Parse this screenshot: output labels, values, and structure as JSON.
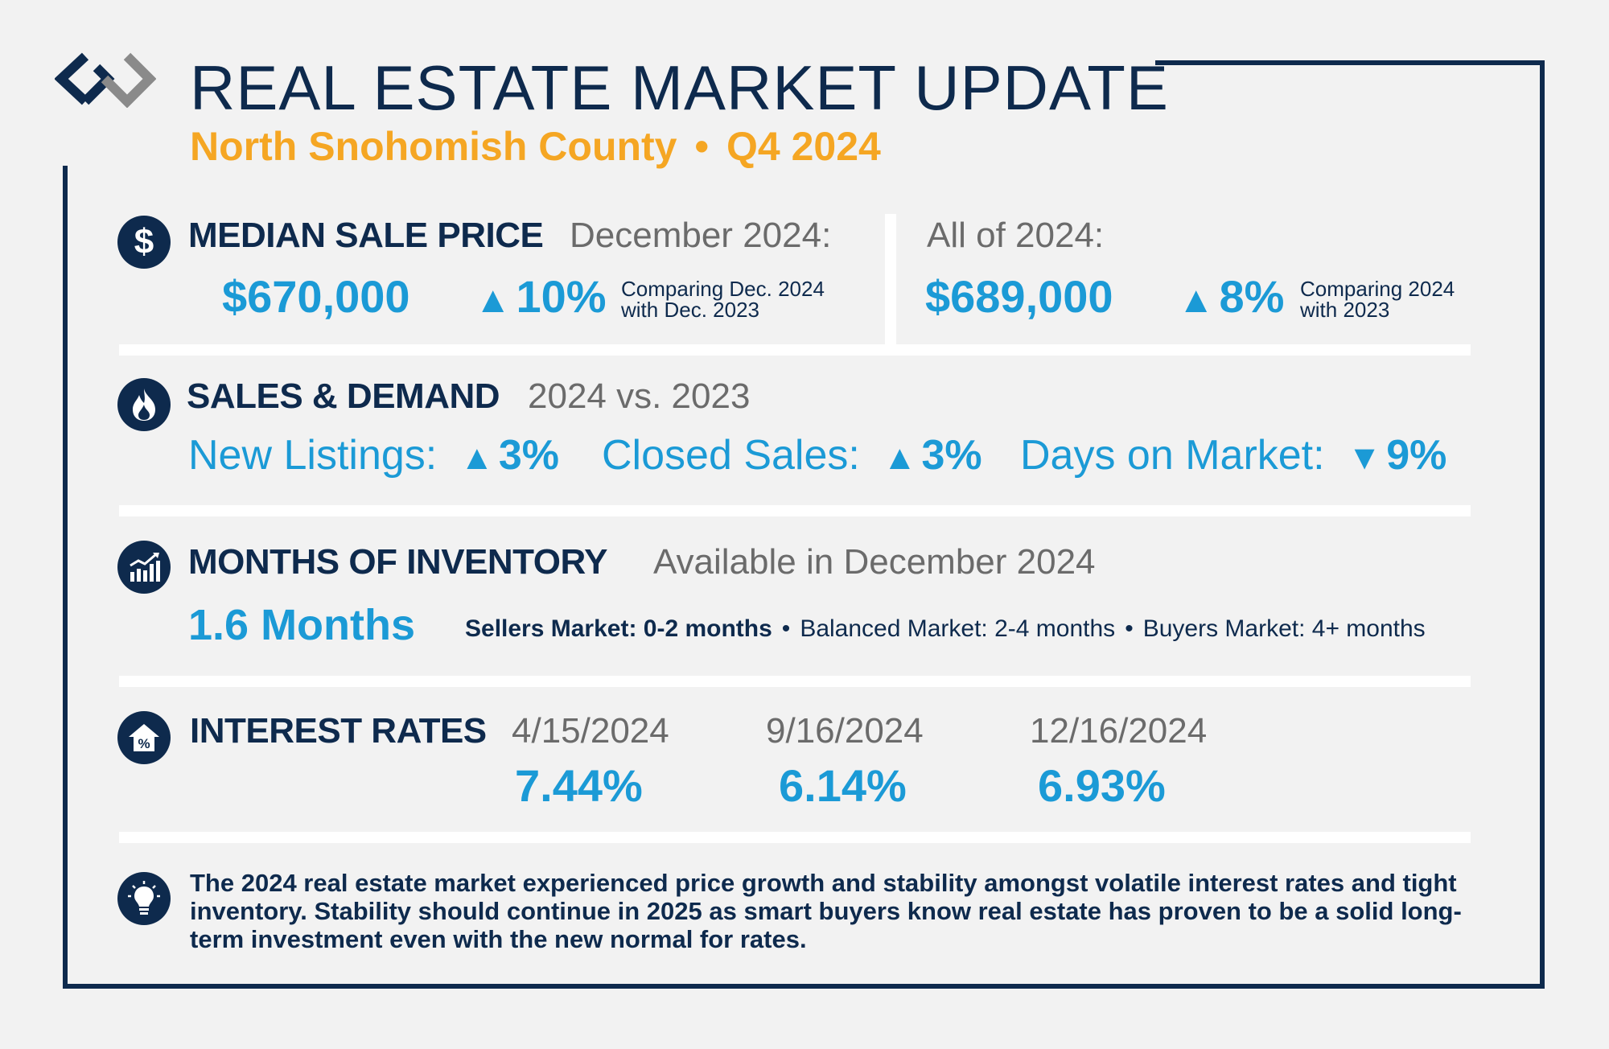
{
  "header": {
    "title": "REAL ESTATE MARKET UPDATE",
    "region": "North Snohomish County",
    "bullet": "•",
    "quarter": "Q4 2024",
    "logo_icon": "windermere-logo"
  },
  "colors": {
    "navy": "#0e2a4d",
    "accent_blue": "#1b9ad6",
    "gold": "#f5a623",
    "gray": "#6b6b6b"
  },
  "median_price": {
    "icon": "dollar-icon",
    "heading": "MEDIAN SALE PRICE",
    "december_label": "December 2024:",
    "december_value": "$670,000",
    "december_arrow": "▲",
    "december_change": "10%",
    "december_note_1": "Comparing Dec. 2024",
    "december_note_2": "with Dec. 2023",
    "year_label": "All of 2024:",
    "year_value": "$689,000",
    "year_arrow": "▲",
    "year_change": "8%",
    "year_note_1": "Comparing 2024",
    "year_note_2": "with 2023"
  },
  "sales_demand": {
    "icon": "fire-icon",
    "heading": "SALES & DEMAND",
    "period": "2024 vs. 2023",
    "new_listings_label": "New Listings:",
    "new_listings_arrow": "▲",
    "new_listings_value": "3%",
    "closed_sales_label": "Closed Sales:",
    "closed_sales_arrow": "▲",
    "closed_sales_value": "3%",
    "dom_label": "Days on Market:",
    "dom_arrow": "▼",
    "dom_value": "9%"
  },
  "inventory": {
    "icon": "bar-chart-icon",
    "heading": "MONTHS OF INVENTORY",
    "period": "Available in December 2024",
    "value": "1.6 Months",
    "sellers": "Sellers Market: 0-2 months",
    "balanced": "Balanced Market: 2-4 months",
    "buyers": "Buyers Market: 4+ months",
    "dot": "•"
  },
  "interest_rates": {
    "icon": "house-percent-icon",
    "heading": "INTEREST RATES",
    "rates": [
      {
        "date": "4/15/2024",
        "value": "7.44%"
      },
      {
        "date": "9/16/2024",
        "value": "6.14%"
      },
      {
        "date": "12/16/2024",
        "value": "6.93%"
      }
    ]
  },
  "insight": {
    "icon": "lightbulb-icon",
    "text": "The 2024 real estate market experienced price growth and stability amongst volatile interest rates and tight inventory. Stability should continue in 2025 as smart buyers know real estate has proven to be a solid long-term investment even with the new normal for rates."
  }
}
